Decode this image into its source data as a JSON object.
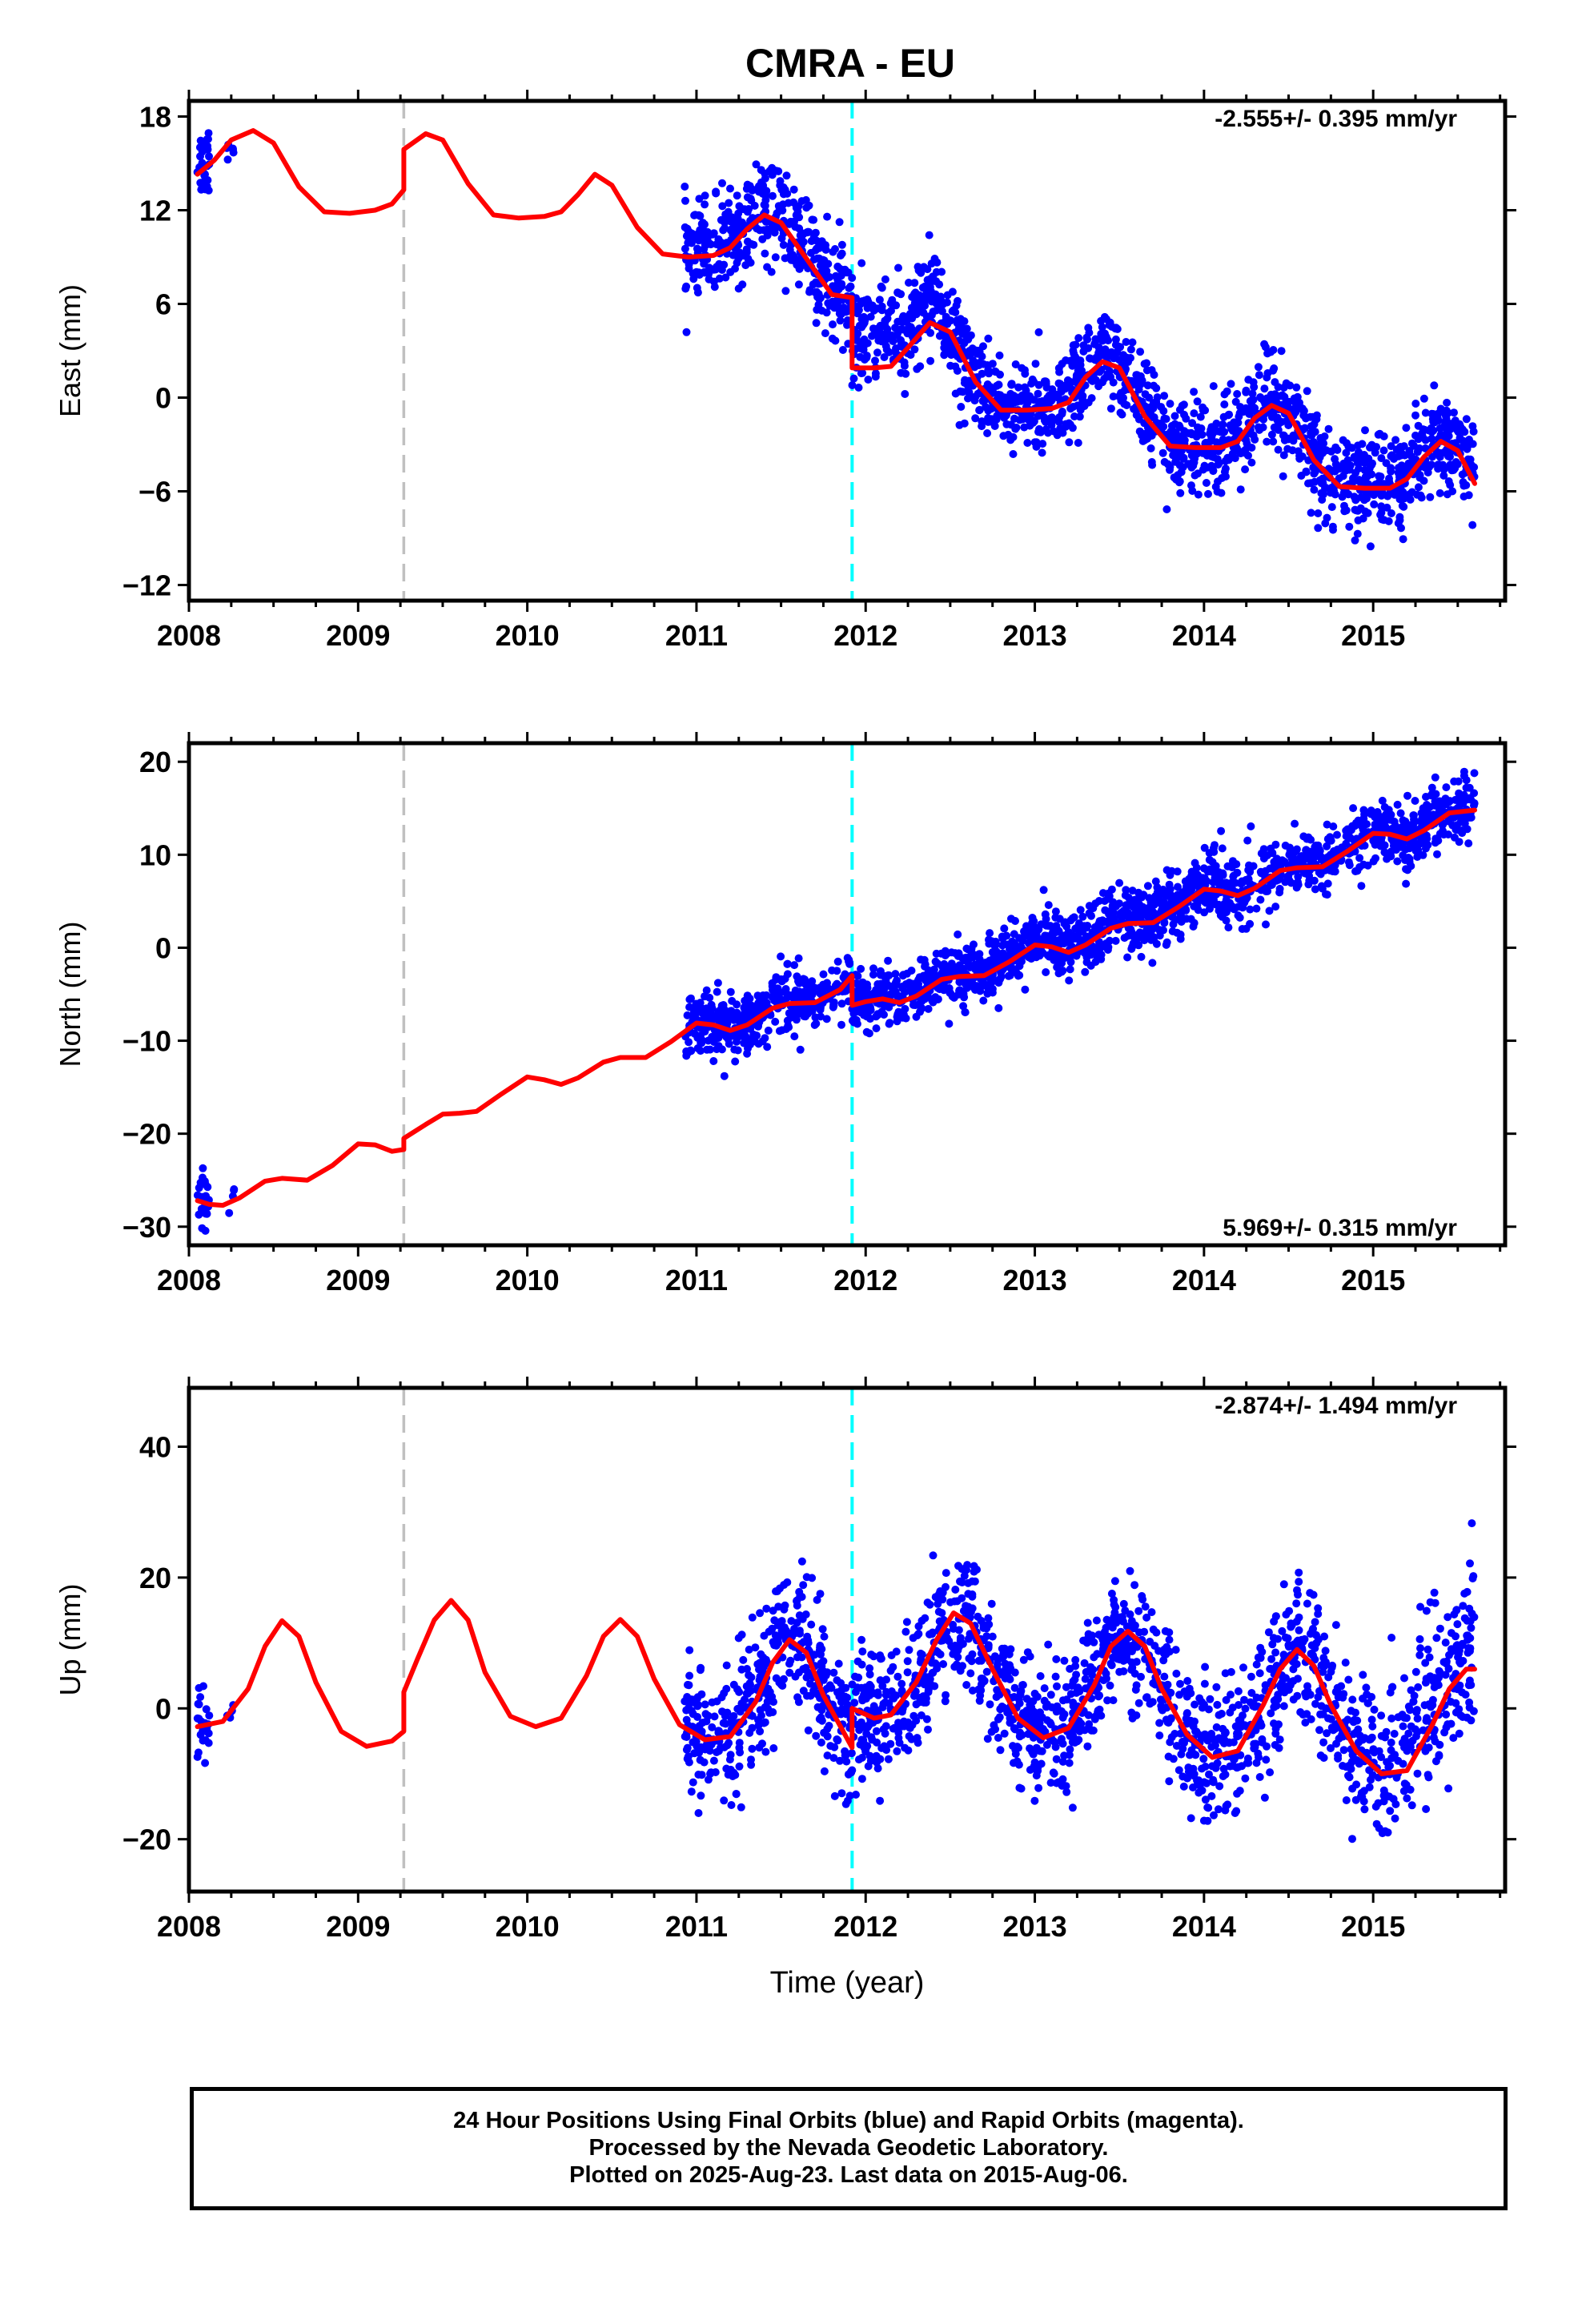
{
  "colors": {
    "final_orbits": "#0000ff",
    "rapid_orbits": "#ff00ff",
    "model": "#ff0000",
    "equipment_change": "#c0c0c0",
    "earthquake": "#00ffff",
    "frame": "#000000"
  },
  "chart_data": [
    {
      "type": "scatter",
      "title": "CMRA - EU",
      "ylabel": "East (mm)",
      "xlabel": "",
      "rate_label": "-2.555+/- 0.395 mm/yr",
      "rate_position": "top-right",
      "xlim": [
        2008.0,
        2015.78
      ],
      "ylim": [
        -13.0,
        19.0
      ],
      "xticks": [
        2008,
        2009,
        2010,
        2011,
        2012,
        2013,
        2014,
        2015
      ],
      "yticks": [
        -12,
        -6,
        0,
        6,
        12,
        18
      ],
      "ytick_labels": [
        "−12",
        "−6",
        "0",
        "6",
        "12",
        "18"
      ],
      "grid": false,
      "offset_lines": [
        {
          "kind": "equipment",
          "x": 2009.27,
          "color": "#c0c0c0"
        },
        {
          "kind": "earthquake",
          "x": 2011.92,
          "color": "#00ffff"
        }
      ],
      "model_series": {
        "name": "model",
        "points": [
          [
            2008.05,
            14.3
          ],
          [
            2008.15,
            15.2
          ],
          [
            2008.25,
            16.5
          ],
          [
            2008.38,
            17.1
          ],
          [
            2008.5,
            16.3
          ],
          [
            2008.65,
            13.5
          ],
          [
            2008.8,
            11.9
          ],
          [
            2008.95,
            11.8
          ],
          [
            2009.1,
            12.0
          ],
          [
            2009.2,
            12.4
          ],
          [
            2009.27,
            13.3
          ],
          [
            2009.27,
            15.9
          ],
          [
            2009.4,
            16.9
          ],
          [
            2009.5,
            16.5
          ],
          [
            2009.65,
            13.7
          ],
          [
            2009.8,
            11.7
          ],
          [
            2009.95,
            11.5
          ],
          [
            2010.1,
            11.6
          ],
          [
            2010.2,
            11.9
          ],
          [
            2010.3,
            13.0
          ],
          [
            2010.4,
            14.3
          ],
          [
            2010.5,
            13.6
          ],
          [
            2010.65,
            10.9
          ],
          [
            2010.8,
            9.2
          ],
          [
            2010.95,
            9.0
          ],
          [
            2011.1,
            9.1
          ],
          [
            2011.2,
            9.6
          ],
          [
            2011.3,
            10.8
          ],
          [
            2011.4,
            11.7
          ],
          [
            2011.5,
            11.2
          ],
          [
            2011.65,
            8.9
          ],
          [
            2011.8,
            6.6
          ],
          [
            2011.92,
            6.4
          ],
          [
            2011.92,
            1.9
          ],
          [
            2012.05,
            1.9
          ],
          [
            2012.15,
            2.0
          ],
          [
            2012.25,
            3.2
          ],
          [
            2012.38,
            4.8
          ],
          [
            2012.5,
            4.2
          ],
          [
            2012.65,
            1.0
          ],
          [
            2012.8,
            -0.8
          ],
          [
            2012.95,
            -0.8
          ],
          [
            2013.1,
            -0.7
          ],
          [
            2013.2,
            -0.3
          ],
          [
            2013.3,
            1.3
          ],
          [
            2013.4,
            2.3
          ],
          [
            2013.5,
            1.9
          ],
          [
            2013.65,
            -1.2
          ],
          [
            2013.8,
            -3.1
          ],
          [
            2013.95,
            -3.2
          ],
          [
            2014.1,
            -3.2
          ],
          [
            2014.2,
            -2.8
          ],
          [
            2014.3,
            -1.3
          ],
          [
            2014.4,
            -0.5
          ],
          [
            2014.5,
            -1.0
          ],
          [
            2014.65,
            -4.0
          ],
          [
            2014.8,
            -5.7
          ],
          [
            2014.95,
            -5.8
          ],
          [
            2015.1,
            -5.8
          ],
          [
            2015.2,
            -5.2
          ],
          [
            2015.3,
            -3.8
          ],
          [
            2015.4,
            -2.8
          ],
          [
            2015.5,
            -3.4
          ],
          [
            2015.6,
            -5.5
          ]
        ]
      },
      "scatter_series": {
        "name": "Final Orbits",
        "clusters": [
          {
            "x_start": 2008.05,
            "x_end": 2008.12,
            "n": 30,
            "offset": 0.5,
            "spread": 1.2
          },
          {
            "x_start": 2008.22,
            "x_end": 2008.27,
            "n": 6,
            "offset": -0.5,
            "spread": 1.0
          },
          {
            "x_start": 2010.93,
            "x_end": 2011.92,
            "n": 430,
            "offset": 0.4,
            "spread": 1.5
          },
          {
            "x_start": 2011.92,
            "x_end": 2012.45,
            "n": 230,
            "offset": 1.8,
            "spread": 1.6
          },
          {
            "x_start": 2012.45,
            "x_end": 2015.6,
            "n": 1350,
            "offset": 0.2,
            "spread": 1.5
          }
        ]
      }
    },
    {
      "type": "scatter",
      "title": "",
      "ylabel": "North (mm)",
      "xlabel": "",
      "rate_label": "5.969+/- 0.315 mm/yr",
      "rate_position": "bottom-right",
      "xlim": [
        2008.0,
        2015.78
      ],
      "ylim": [
        -32.0,
        22.0
      ],
      "xticks": [
        2008,
        2009,
        2010,
        2011,
        2012,
        2013,
        2014,
        2015
      ],
      "yticks": [
        -30,
        -20,
        -10,
        0,
        10,
        20
      ],
      "ytick_labels": [
        "−30",
        "−20",
        "−10",
        "0",
        "10",
        "20"
      ],
      "grid": false,
      "offset_lines": [
        {
          "kind": "equipment",
          "x": 2009.27,
          "color": "#c0c0c0"
        },
        {
          "kind": "earthquake",
          "x": 2011.92,
          "color": "#00ffff"
        }
      ],
      "model_series": {
        "name": "model",
        "points": [
          [
            2008.05,
            -27.2
          ],
          [
            2008.12,
            -27.6
          ],
          [
            2008.2,
            -27.7
          ],
          [
            2008.3,
            -26.9
          ],
          [
            2008.45,
            -25.1
          ],
          [
            2008.55,
            -24.8
          ],
          [
            2008.7,
            -25.0
          ],
          [
            2008.85,
            -23.4
          ],
          [
            2009.0,
            -21.1
          ],
          [
            2009.1,
            -21.2
          ],
          [
            2009.2,
            -21.9
          ],
          [
            2009.27,
            -21.7
          ],
          [
            2009.27,
            -20.5
          ],
          [
            2009.4,
            -19.0
          ],
          [
            2009.5,
            -17.9
          ],
          [
            2009.6,
            -17.8
          ],
          [
            2009.7,
            -17.6
          ],
          [
            2009.85,
            -15.7
          ],
          [
            2010.0,
            -13.9
          ],
          [
            2010.1,
            -14.2
          ],
          [
            2010.2,
            -14.7
          ],
          [
            2010.3,
            -14.0
          ],
          [
            2010.45,
            -12.3
          ],
          [
            2010.55,
            -11.8
          ],
          [
            2010.7,
            -11.8
          ],
          [
            2010.85,
            -10.1
          ],
          [
            2011.0,
            -8.1
          ],
          [
            2011.1,
            -8.3
          ],
          [
            2011.2,
            -8.9
          ],
          [
            2011.3,
            -8.3
          ],
          [
            2011.45,
            -6.5
          ],
          [
            2011.55,
            -6.0
          ],
          [
            2011.7,
            -5.9
          ],
          [
            2011.85,
            -4.5
          ],
          [
            2011.92,
            -3.0
          ],
          [
            2011.92,
            -6.2
          ],
          [
            2012.0,
            -5.8
          ],
          [
            2012.1,
            -5.5
          ],
          [
            2012.2,
            -5.9
          ],
          [
            2012.3,
            -5.2
          ],
          [
            2012.45,
            -3.4
          ],
          [
            2012.55,
            -3.1
          ],
          [
            2012.7,
            -3.0
          ],
          [
            2012.85,
            -1.5
          ],
          [
            2013.0,
            0.3
          ],
          [
            2013.1,
            0.1
          ],
          [
            2013.2,
            -0.5
          ],
          [
            2013.3,
            0.3
          ],
          [
            2013.45,
            2.1
          ],
          [
            2013.55,
            2.6
          ],
          [
            2013.7,
            2.7
          ],
          [
            2013.85,
            4.4
          ],
          [
            2014.0,
            6.3
          ],
          [
            2014.1,
            6.1
          ],
          [
            2014.2,
            5.6
          ],
          [
            2014.3,
            6.4
          ],
          [
            2014.45,
            8.3
          ],
          [
            2014.55,
            8.6
          ],
          [
            2014.7,
            8.7
          ],
          [
            2014.85,
            10.4
          ],
          [
            2015.0,
            12.3
          ],
          [
            2015.1,
            12.2
          ],
          [
            2015.2,
            11.7
          ],
          [
            2015.3,
            12.6
          ],
          [
            2015.45,
            14.5
          ],
          [
            2015.6,
            14.8
          ]
        ]
      },
      "scatter_series": {
        "name": "Final Orbits",
        "clusters": [
          {
            "x_start": 2008.05,
            "x_end": 2008.12,
            "n": 25,
            "offset": 0.0,
            "spread": 1.4
          },
          {
            "x_start": 2008.22,
            "x_end": 2008.27,
            "n": 4,
            "offset": 0.0,
            "spread": 1.0
          },
          {
            "x_start": 2010.93,
            "x_end": 2011.92,
            "n": 430,
            "offset": 0.3,
            "spread": 1.6
          },
          {
            "x_start": 2011.92,
            "x_end": 2015.6,
            "n": 1580,
            "offset": 0.4,
            "spread": 1.7
          }
        ]
      }
    },
    {
      "type": "scatter",
      "title": "",
      "ylabel": "Up (mm)",
      "xlabel": "Time (year)",
      "rate_label": "-2.874+/- 1.494 mm/yr",
      "rate_position": "top-right",
      "xlim": [
        2008.0,
        2015.78
      ],
      "ylim": [
        -28.0,
        49.0
      ],
      "xticks": [
        2008,
        2009,
        2010,
        2011,
        2012,
        2013,
        2014,
        2015
      ],
      "yticks": [
        -20,
        0,
        20,
        40
      ],
      "ytick_labels": [
        "−20",
        "0",
        "20",
        "40"
      ],
      "grid": false,
      "offset_lines": [
        {
          "kind": "equipment",
          "x": 2009.27,
          "color": "#c0c0c0"
        },
        {
          "kind": "earthquake",
          "x": 2011.92,
          "color": "#00ffff"
        }
      ],
      "model_series": {
        "name": "model",
        "points": [
          [
            2008.05,
            -2.8
          ],
          [
            2008.2,
            -2.0
          ],
          [
            2008.35,
            3.0
          ],
          [
            2008.45,
            9.5
          ],
          [
            2008.55,
            13.4
          ],
          [
            2008.65,
            11.0
          ],
          [
            2008.75,
            4.0
          ],
          [
            2008.9,
            -3.5
          ],
          [
            2009.05,
            -5.8
          ],
          [
            2009.2,
            -5.0
          ],
          [
            2009.27,
            -3.5
          ],
          [
            2009.27,
            2.5
          ],
          [
            2009.35,
            7.5
          ],
          [
            2009.45,
            13.5
          ],
          [
            2009.55,
            16.5
          ],
          [
            2009.65,
            13.5
          ],
          [
            2009.75,
            5.5
          ],
          [
            2009.9,
            -1.2
          ],
          [
            2010.05,
            -2.8
          ],
          [
            2010.2,
            -1.5
          ],
          [
            2010.35,
            5.0
          ],
          [
            2010.45,
            11.0
          ],
          [
            2010.55,
            13.6
          ],
          [
            2010.65,
            11.0
          ],
          [
            2010.75,
            4.5
          ],
          [
            2010.9,
            -2.5
          ],
          [
            2011.05,
            -4.8
          ],
          [
            2011.2,
            -4.3
          ],
          [
            2011.35,
            1.0
          ],
          [
            2011.45,
            7.0
          ],
          [
            2011.55,
            10.5
          ],
          [
            2011.65,
            8.5
          ],
          [
            2011.75,
            2.0
          ],
          [
            2011.92,
            -6.0
          ],
          [
            2011.92,
            0.0
          ],
          [
            2012.05,
            -1.5
          ],
          [
            2012.15,
            -1.0
          ],
          [
            2012.3,
            4.0
          ],
          [
            2012.42,
            10.5
          ],
          [
            2012.52,
            14.6
          ],
          [
            2012.62,
            13.0
          ],
          [
            2012.75,
            6.0
          ],
          [
            2012.9,
            -1.5
          ],
          [
            2013.05,
            -4.5
          ],
          [
            2013.2,
            -3.0
          ],
          [
            2013.35,
            3.5
          ],
          [
            2013.45,
            9.5
          ],
          [
            2013.55,
            11.8
          ],
          [
            2013.65,
            9.5
          ],
          [
            2013.75,
            3.0
          ],
          [
            2013.9,
            -4.0
          ],
          [
            2014.05,
            -7.5
          ],
          [
            2014.2,
            -6.5
          ],
          [
            2014.35,
            0.5
          ],
          [
            2014.45,
            6.0
          ],
          [
            2014.55,
            9.0
          ],
          [
            2014.65,
            6.5
          ],
          [
            2014.75,
            0.5
          ],
          [
            2014.9,
            -6.5
          ],
          [
            2015.05,
            -10.0
          ],
          [
            2015.2,
            -9.5
          ],
          [
            2015.35,
            -2.5
          ],
          [
            2015.45,
            3.0
          ],
          [
            2015.55,
            6.0
          ],
          [
            2015.6,
            6.0
          ]
        ]
      },
      "scatter_series": {
        "name": "Final Orbits",
        "clusters": [
          {
            "x_start": 2008.05,
            "x_end": 2008.12,
            "n": 25,
            "offset": 0.0,
            "spread": 3.0
          },
          {
            "x_start": 2008.22,
            "x_end": 2008.27,
            "n": 5,
            "offset": 0.0,
            "spread": 2.0
          },
          {
            "x_start": 2010.93,
            "x_end": 2011.92,
            "n": 420,
            "offset": 0.5,
            "spread": 5.0
          },
          {
            "x_start": 2011.92,
            "x_end": 2015.1,
            "n": 1300,
            "offset": 0.0,
            "spread": 5.0
          },
          {
            "x_start": 2015.1,
            "x_end": 2015.6,
            "n": 200,
            "offset": 4.0,
            "spread": 7.0
          }
        ]
      }
    }
  ],
  "footer": {
    "line1": "24 Hour Positions Using Final Orbits (blue) and Rapid Orbits (magenta).",
    "line2": "Processed by the Nevada Geodetic Laboratory.",
    "line3": "Plotted on 2025-Aug-23. Last data on 2015-Aug-06."
  }
}
